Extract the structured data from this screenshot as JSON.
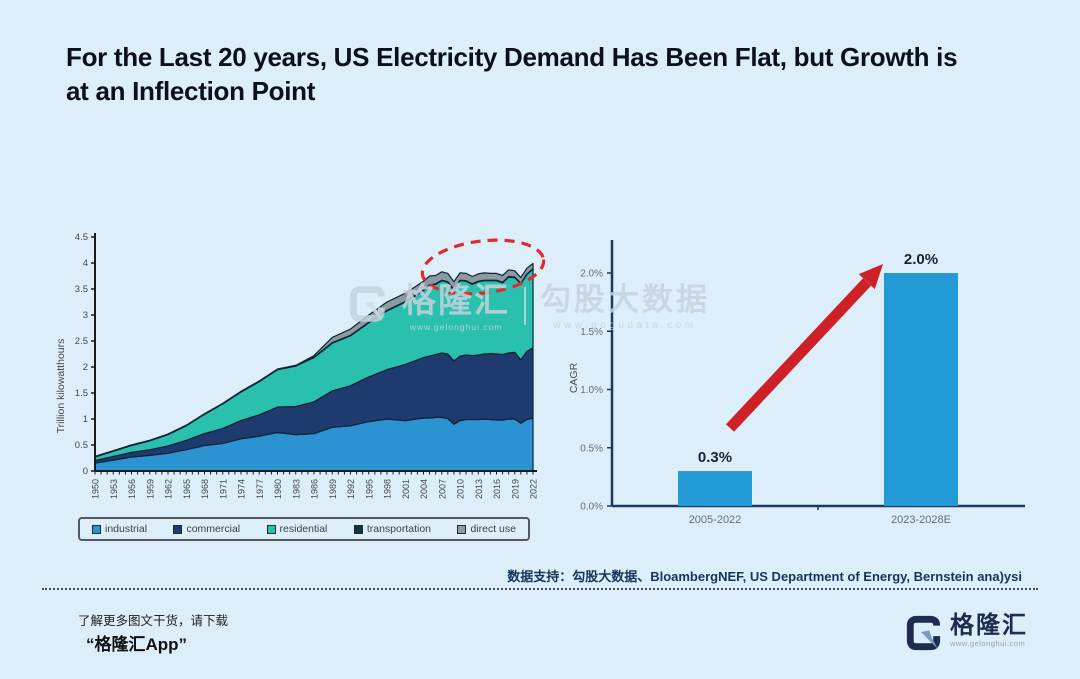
{
  "title": "For the Last 20 years, US Electricity Demand Has Been Flat, but Growth is at an Inflection Point",
  "source_note": "数据支持：勾股大数据、BloambergNEF, US Department of Energy, Bernstein ana)ysi",
  "footer": {
    "promo_line1": "了解更多图文干货，请下载",
    "promo_line2": "“格隆汇App”",
    "logo_text": "格隆汇",
    "logo_url": "www.gelonghui.com"
  },
  "watermark": {
    "brand": "格隆汇",
    "brand_url": "www.gelonghui.com",
    "product": "勾股大数据",
    "product_url": "www.gogudata.com"
  },
  "colors": {
    "background": "#dceefa",
    "title": "#0c101d",
    "industrial": "#2b93d1",
    "commercial": "#1e3a6e",
    "residential": "#2ac0ae",
    "transportation": "#12343f",
    "direct_use": "#8d9aa4",
    "outline": "#0e2433",
    "bar_blue": "#2399d6",
    "arrow_red": "#ce2127",
    "ellipse_red": "#e12b2b",
    "axis_dark": "#1c3a5e",
    "source_navy": "#15355c"
  },
  "chart_data": [
    {
      "type": "area",
      "subtype": "stacked",
      "ylabel": "Trillion kilowatthours",
      "ylim": [
        0,
        4.5
      ],
      "ytick_step": 0.5,
      "xlim": [
        1950,
        2022
      ],
      "xtick_labels": [
        "1950",
        "1953",
        "1956",
        "1959",
        "1962",
        "1965",
        "1968",
        "1971",
        "1974",
        "1977",
        "1980",
        "1983",
        "1986",
        "1989",
        "1992",
        "1995",
        "1998",
        "2001",
        "2004",
        "2007",
        "2010",
        "2013",
        "2016",
        "2019",
        "2022"
      ],
      "x": [
        1950,
        1953,
        1956,
        1959,
        1962,
        1965,
        1968,
        1971,
        1974,
        1977,
        1980,
        1983,
        1986,
        1989,
        1992,
        1995,
        1998,
        2001,
        2004,
        2005,
        2006,
        2007,
        2008,
        2009,
        2010,
        2011,
        2012,
        2013,
        2014,
        2015,
        2016,
        2017,
        2018,
        2019,
        2020,
        2021,
        2022
      ],
      "series": [
        {
          "name": "industrial",
          "color": "#2b93d1",
          "values": [
            0.15,
            0.21,
            0.27,
            0.3,
            0.34,
            0.41,
            0.49,
            0.53,
            0.62,
            0.67,
            0.74,
            0.7,
            0.72,
            0.84,
            0.87,
            0.95,
            1.0,
            0.97,
            1.02,
            1.02,
            1.03,
            1.03,
            1.01,
            0.9,
            0.97,
            0.99,
            0.99,
            0.99,
            1.0,
            0.99,
            0.98,
            0.98,
            1.0,
            1.0,
            0.92,
            0.99,
            1.02
          ]
        },
        {
          "name": "commercial",
          "color": "#1e3a6e",
          "values": [
            0.05,
            0.07,
            0.09,
            0.11,
            0.14,
            0.18,
            0.23,
            0.29,
            0.35,
            0.41,
            0.49,
            0.54,
            0.61,
            0.7,
            0.77,
            0.86,
            0.95,
            1.08,
            1.16,
            1.19,
            1.21,
            1.24,
            1.24,
            1.22,
            1.24,
            1.24,
            1.23,
            1.24,
            1.25,
            1.27,
            1.27,
            1.26,
            1.27,
            1.28,
            1.22,
            1.31,
            1.35
          ]
        },
        {
          "name": "residential",
          "color": "#2ac0ae",
          "values": [
            0.07,
            0.1,
            0.13,
            0.17,
            0.22,
            0.28,
            0.37,
            0.47,
            0.55,
            0.64,
            0.72,
            0.78,
            0.85,
            0.92,
            0.96,
            1.04,
            1.13,
            1.2,
            1.29,
            1.36,
            1.35,
            1.39,
            1.38,
            1.36,
            1.45,
            1.42,
            1.37,
            1.41,
            1.41,
            1.4,
            1.41,
            1.38,
            1.46,
            1.44,
            1.46,
            1.48,
            1.51
          ]
        },
        {
          "name": "transportation",
          "color": "#12343f",
          "values": [
            0.01,
            0.01,
            0.01,
            0.01,
            0.01,
            0.01,
            0.01,
            0.01,
            0.01,
            0.01,
            0.01,
            0.01,
            0.01,
            0.01,
            0.01,
            0.01,
            0.01,
            0.01,
            0.01,
            0.01,
            0.01,
            0.01,
            0.01,
            0.01,
            0.01,
            0.01,
            0.01,
            0.01,
            0.01,
            0.01,
            0.01,
            0.01,
            0.01,
            0.01,
            0.01,
            0.01,
            0.01
          ]
        },
        {
          "name": "direct use",
          "color": "#8d9aa4",
          "values": [
            0,
            0,
            0,
            0,
            0,
            0,
            0,
            0,
            0,
            0,
            0,
            0,
            0.03,
            0.1,
            0.12,
            0.14,
            0.16,
            0.16,
            0.17,
            0.17,
            0.16,
            0.16,
            0.16,
            0.15,
            0.14,
            0.14,
            0.14,
            0.14,
            0.14,
            0.13,
            0.13,
            0.13,
            0.13,
            0.12,
            0.11,
            0.11,
            0.1
          ]
        }
      ],
      "annotation": "red-dashed-ellipse-flat-region"
    },
    {
      "type": "bar",
      "ylabel": "CAGR",
      "ylim": [
        0,
        2.2
      ],
      "ytick_values": [
        0,
        0.5,
        1.0,
        1.5,
        2.0
      ],
      "ytick_labels": [
        "0.0%",
        "0.5%",
        "1.0%",
        "1.5%",
        "2.0%"
      ],
      "categories": [
        "2005-2022",
        "2023-2028E"
      ],
      "values": [
        0.3,
        2.0
      ],
      "value_labels": [
        "0.3%",
        "2.0%"
      ],
      "bar_color": "#2399d6",
      "annotation": "red-growth-arrow"
    }
  ]
}
